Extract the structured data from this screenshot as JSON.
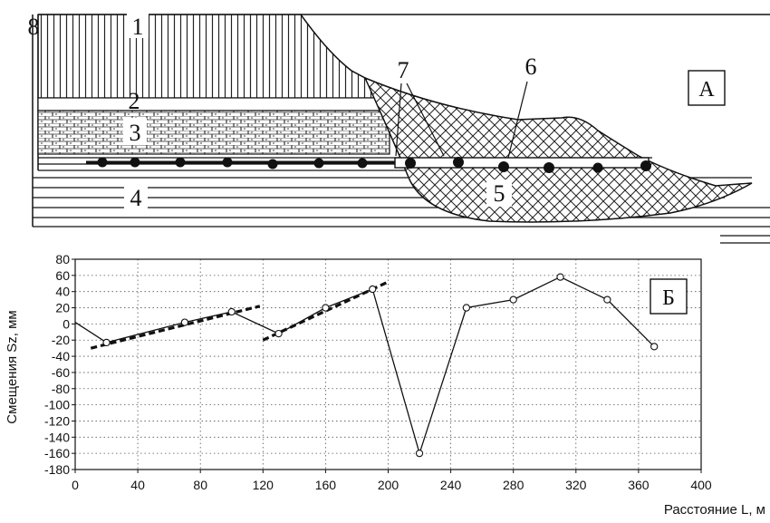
{
  "section_a": {
    "panel_label": "А",
    "labels": {
      "l1": "1",
      "l2": "2",
      "l3": "3",
      "l4": "4",
      "l5": "5",
      "l6": "6",
      "l7": "7",
      "l8": "8"
    }
  },
  "chart_data": {
    "type": "line",
    "panel_label": "Б",
    "xlabel": "Расстояние  L, м",
    "ylabel": "Смещения Sz, мм",
    "xlim": [
      0,
      400
    ],
    "ylim": [
      -180,
      80
    ],
    "x_ticks": [
      0,
      40,
      80,
      120,
      160,
      200,
      240,
      280,
      320,
      360,
      400
    ],
    "y_ticks": [
      80,
      60,
      40,
      20,
      0,
      -20,
      -40,
      -60,
      -80,
      -100,
      -120,
      -140,
      -160,
      -180
    ],
    "grid": true,
    "grid_style": "dotted",
    "series": [
      {
        "style": "solid-line-open-circles",
        "points": [
          {
            "x": 0,
            "y": 2,
            "marker": false
          },
          {
            "x": 20,
            "y": -23,
            "marker": true
          },
          {
            "x": 70,
            "y": 2,
            "marker": true
          },
          {
            "x": 100,
            "y": 15,
            "marker": true
          },
          {
            "x": 130,
            "y": -12,
            "marker": true
          },
          {
            "x": 160,
            "y": 20,
            "marker": true
          },
          {
            "x": 190,
            "y": 43,
            "marker": true
          },
          {
            "x": 220,
            "y": -160,
            "marker": true
          },
          {
            "x": 250,
            "y": 20,
            "marker": true
          },
          {
            "x": 280,
            "y": 30,
            "marker": true
          },
          {
            "x": 310,
            "y": 58,
            "marker": true
          },
          {
            "x": 340,
            "y": 30,
            "marker": true
          },
          {
            "x": 370,
            "y": -28,
            "marker": true
          }
        ]
      },
      {
        "style": "dashed-trend",
        "points": [
          {
            "x": 10,
            "y": -30
          },
          {
            "x": 118,
            "y": 22
          }
        ]
      },
      {
        "style": "dashed-trend",
        "points": [
          {
            "x": 120,
            "y": -20
          },
          {
            "x": 200,
            "y": 52
          }
        ]
      }
    ]
  }
}
